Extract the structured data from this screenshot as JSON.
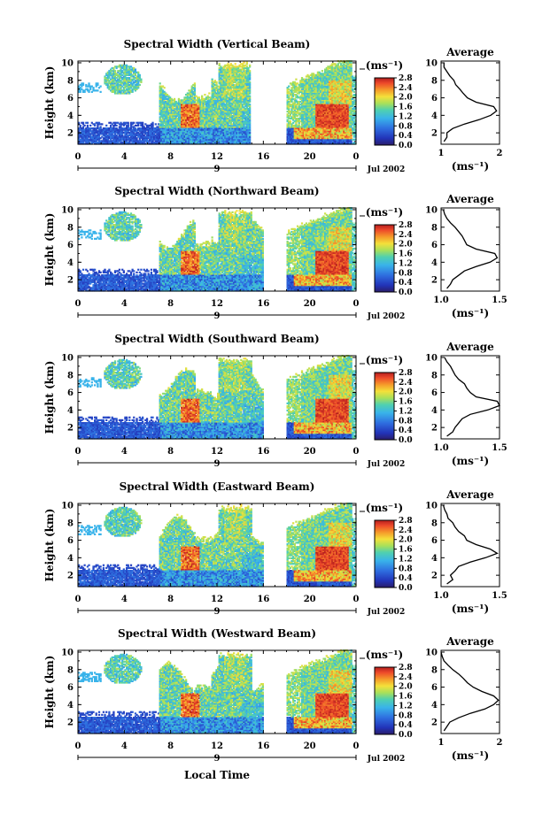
{
  "figure": {
    "xlabel": "Local Time",
    "ylabel": "Height (km)",
    "unit_label": "(ms⁻¹)",
    "date_label": "Jul 2002",
    "day_marker": "9",
    "profile_title": "Average",
    "profile_xlabel": "(ms⁻¹)"
  },
  "chart_data": [
    {
      "type": "heatmap",
      "title": "Spectral Width (Vertical Beam)",
      "ylabel": "Height (km)",
      "x_ticks": [
        "0",
        "4",
        "8",
        "12",
        "16",
        "20",
        "0"
      ],
      "y_ticks": [
        "2",
        "4",
        "6",
        "8",
        "10"
      ],
      "xlim": [
        0,
        24
      ],
      "ylim": [
        0.7,
        10.2
      ],
      "colorbar": {
        "label": "(ms⁻¹)",
        "ticks": [
          "2.8",
          "2.4",
          "2.0",
          "1.6",
          "1.2",
          "0.8",
          "0.4",
          "0.0"
        ],
        "range": [
          0,
          2.8
        ]
      },
      "profile": {
        "title": "Average",
        "xlabel": "(ms⁻¹)",
        "xticks": [
          "1",
          "2"
        ],
        "xlim": [
          1,
          2
        ],
        "heights": [
          1,
          1.5,
          2,
          2.5,
          3,
          3.5,
          4,
          4.5,
          5,
          5.5,
          6,
          6.5,
          7,
          7.5,
          8,
          8.5,
          9,
          9.5,
          10
        ],
        "values": [
          1.05,
          1.1,
          1.1,
          1.2,
          1.4,
          1.65,
          1.85,
          1.95,
          1.9,
          1.6,
          1.45,
          1.38,
          1.32,
          1.25,
          1.22,
          1.15,
          1.1,
          1.05,
          1.05
        ]
      }
    },
    {
      "type": "heatmap",
      "title": "Spectral Width (Northward Beam)",
      "ylabel": "Height (km)",
      "x_ticks": [
        "0",
        "4",
        "8",
        "12",
        "16",
        "20",
        "0"
      ],
      "y_ticks": [
        "2",
        "4",
        "6",
        "8",
        "10"
      ],
      "xlim": [
        0,
        24
      ],
      "ylim": [
        0.7,
        10.2
      ],
      "colorbar": {
        "label": "(ms⁻¹)",
        "ticks": [
          "2.8",
          "2.4",
          "2.0",
          "1.6",
          "1.2",
          "0.8",
          "0.4",
          "0.0"
        ],
        "range": [
          0,
          2.8
        ]
      },
      "profile": {
        "title": "Average",
        "xlabel": "(ms⁻¹)",
        "xticks": [
          "1.0",
          "1.5"
        ],
        "xlim": [
          1.0,
          1.5
        ],
        "heights": [
          1,
          1.5,
          2,
          2.5,
          3,
          3.5,
          4,
          4.5,
          5,
          5.5,
          6,
          6.5,
          7,
          7.5,
          8,
          8.5,
          9,
          9.5,
          10
        ],
        "values": [
          1.05,
          1.08,
          1.1,
          1.15,
          1.2,
          1.3,
          1.42,
          1.48,
          1.46,
          1.3,
          1.22,
          1.2,
          1.18,
          1.15,
          1.12,
          1.08,
          1.05,
          1.03,
          1.02
        ]
      }
    },
    {
      "type": "heatmap",
      "title": "Spectral Width (Southward Beam)",
      "ylabel": "Height (km)",
      "x_ticks": [
        "0",
        "4",
        "8",
        "12",
        "16",
        "20",
        "0"
      ],
      "y_ticks": [
        "2",
        "4",
        "6",
        "8",
        "10"
      ],
      "xlim": [
        0,
        24
      ],
      "ylim": [
        0.7,
        10.2
      ],
      "colorbar": {
        "label": "(ms⁻¹)",
        "ticks": [
          "2.8",
          "2.4",
          "2.0",
          "1.6",
          "1.2",
          "0.8",
          "0.4",
          "0.0"
        ],
        "range": [
          0,
          2.8
        ]
      },
      "profile": {
        "title": "Average",
        "xlabel": "(ms⁻¹)",
        "xticks": [
          "1.0",
          "1.5"
        ],
        "xlim": [
          1.0,
          1.5
        ],
        "heights": [
          1,
          1.5,
          2,
          2.5,
          3,
          3.5,
          4,
          4.5,
          5,
          5.5,
          6,
          6.5,
          7,
          7.5,
          8,
          8.5,
          9,
          9.5,
          10
        ],
        "values": [
          1.05,
          1.1,
          1.12,
          1.15,
          1.18,
          1.25,
          1.4,
          1.5,
          1.48,
          1.3,
          1.25,
          1.22,
          1.2,
          1.15,
          1.12,
          1.1,
          1.08,
          1.05,
          1.03
        ]
      }
    },
    {
      "type": "heatmap",
      "title": "Spectral Width (Eastward Beam)",
      "ylabel": "Height (km)",
      "x_ticks": [
        "0",
        "4",
        "8",
        "12",
        "16",
        "20",
        "0"
      ],
      "y_ticks": [
        "2",
        "4",
        "6",
        "8",
        "10"
      ],
      "xlim": [
        0,
        24
      ],
      "ylim": [
        0.7,
        10.2
      ],
      "colorbar": {
        "label": "(ms⁻¹)",
        "ticks": [
          "2.8",
          "2.4",
          "2.0",
          "1.6",
          "1.2",
          "0.8",
          "0.4",
          "0.0"
        ],
        "range": [
          0,
          2.8
        ]
      },
      "profile": {
        "title": "Average",
        "xlabel": "(ms⁻¹)",
        "xticks": [
          "1.0",
          "1.5"
        ],
        "xlim": [
          1.0,
          1.5
        ],
        "heights": [
          1,
          1.5,
          2,
          2.5,
          3,
          3.5,
          4,
          4.5,
          5,
          5.5,
          6,
          6.5,
          7,
          7.5,
          8,
          8.5,
          9,
          9.5,
          10
        ],
        "values": [
          1.05,
          1.1,
          1.08,
          1.12,
          1.15,
          1.25,
          1.38,
          1.48,
          1.42,
          1.3,
          1.22,
          1.2,
          1.15,
          1.12,
          1.1,
          1.06,
          1.05,
          1.03,
          1.02
        ]
      }
    },
    {
      "type": "heatmap",
      "title": "Spectral Width (Westward Beam)",
      "ylabel": "Height (km)",
      "x_ticks": [
        "0",
        "4",
        "8",
        "12",
        "16",
        "20",
        "0"
      ],
      "y_ticks": [
        "2",
        "4",
        "6",
        "8",
        "10"
      ],
      "xlim": [
        0,
        24
      ],
      "ylim": [
        0.7,
        10.2
      ],
      "colorbar": {
        "label": "(ms⁻¹)",
        "ticks": [
          "2.8",
          "2.4",
          "2.0",
          "1.6",
          "1.2",
          "0.8",
          "0.4",
          "0.0"
        ],
        "range": [
          0,
          2.8
        ]
      },
      "profile": {
        "title": "Average",
        "xlabel": "(ms⁻¹)",
        "xticks": [
          "1",
          "2"
        ],
        "xlim": [
          1,
          2
        ],
        "heights": [
          1,
          1.5,
          2,
          2.5,
          3,
          3.5,
          4,
          4.5,
          5,
          5.5,
          6,
          6.5,
          7,
          7.5,
          8,
          8.5,
          9,
          9.5,
          10
        ],
        "values": [
          1.05,
          1.1,
          1.15,
          1.3,
          1.5,
          1.75,
          1.9,
          1.98,
          1.9,
          1.7,
          1.55,
          1.45,
          1.38,
          1.3,
          1.2,
          1.12,
          1.05,
          1.02,
          1.0
        ]
      }
    }
  ]
}
